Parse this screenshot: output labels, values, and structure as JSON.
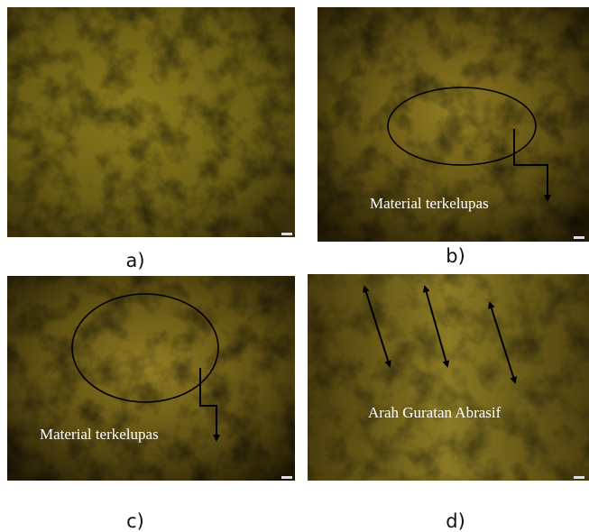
{
  "panels": [
    {
      "label": "a)"
    },
    {
      "label": "b)",
      "annotation": "Material terkelupas"
    },
    {
      "label": "c)",
      "annotation": "Material terkelupas"
    },
    {
      "label": "d)",
      "annotation": "Arah Guratan Abrasif"
    }
  ]
}
